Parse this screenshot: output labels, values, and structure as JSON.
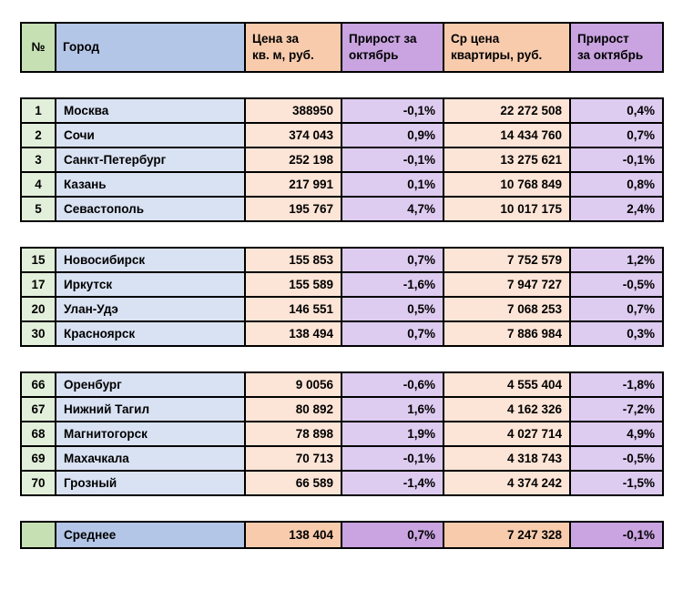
{
  "colors": {
    "border": "#000000",
    "header_green": "#C6E0B4",
    "header_blue": "#B4C6E7",
    "header_peach": "#F8CBAD",
    "header_purple": "#C9A4E0",
    "row_green": "#E2EFDA",
    "row_blue": "#D9E2F3",
    "row_peach": "#FCE4D6",
    "row_purple": "#DECBF0",
    "background": "#FFFFFF"
  },
  "table": {
    "headers": {
      "num": "№",
      "city": "Город",
      "price": "Цена за\nкв. м, руб.",
      "growth_october_1": "Прирост за\nоктябрь",
      "avg_price": "Ср цена\nквартиры, руб.",
      "growth_october_2": "Прирост\nза октябрь"
    },
    "groups": [
      {
        "rows": [
          {
            "num": "1",
            "city": "Москва",
            "price": "388950",
            "growth1": "-0,1%",
            "avg": "22 272 508",
            "growth2": "0,4%"
          },
          {
            "num": "2",
            "city": "Сочи",
            "price": "374 043",
            "growth1": "0,9%",
            "avg": "14 434 760",
            "growth2": "0,7%"
          },
          {
            "num": "3",
            "city": "Санкт-Петербург",
            "price": "252 198",
            "growth1": "-0,1%",
            "avg": "13 275 621",
            "growth2": "-0,1%"
          },
          {
            "num": "4",
            "city": "Казань",
            "price": "217 991",
            "growth1": "0,1%",
            "avg": "10 768 849",
            "growth2": "0,8%"
          },
          {
            "num": "5",
            "city": "Севастополь",
            "price": "195 767",
            "growth1": "4,7%",
            "avg": "10 017 175",
            "growth2": "2,4%"
          }
        ]
      },
      {
        "rows": [
          {
            "num": "15",
            "city": "Новосибирск",
            "price": "155 853",
            "growth1": "0,7%",
            "avg": "7 752 579",
            "growth2": "1,2%"
          },
          {
            "num": "17",
            "city": "Иркутск",
            "price": "155 589",
            "growth1": "-1,6%",
            "avg": "7 947 727",
            "growth2": "-0,5%"
          },
          {
            "num": "20",
            "city": "Улан-Удэ",
            "price": "146 551",
            "growth1": "0,5%",
            "avg": "7 068 253",
            "growth2": "0,7%"
          },
          {
            "num": "30",
            "city": "Красноярск",
            "price": "138 494",
            "growth1": "0,7%",
            "avg": "7 886 984",
            "growth2": "0,3%"
          }
        ]
      },
      {
        "rows": [
          {
            "num": "66",
            "city": "Оренбург",
            "price": "9 0056",
            "growth1": "-0,6%",
            "avg": "4 555 404",
            "growth2": "-1,8%"
          },
          {
            "num": "67",
            "city": "Нижний Тагил",
            "price": "80 892",
            "growth1": "1,6%",
            "avg": "4 162 326",
            "growth2": "-7,2%"
          },
          {
            "num": "68",
            "city": "Магнитогорск",
            "price": "78 898",
            "growth1": "1,9%",
            "avg": "4 027 714",
            "growth2": "4,9%"
          },
          {
            "num": "69",
            "city": "Махачкала",
            "price": "70 713",
            "growth1": "-0,1%",
            "avg": "4 318 743",
            "growth2": "-0,5%"
          },
          {
            "num": "70",
            "city": "Грозный",
            "price": "66 589",
            "growth1": "-1,4%",
            "avg": "4 374 242",
            "growth2": "-1,5%"
          }
        ]
      }
    ],
    "summary": {
      "num": "",
      "city": "Среднее",
      "price": "138 404",
      "growth1": "0,7%",
      "avg": "7 247 328",
      "growth2": "-0,1%"
    }
  }
}
